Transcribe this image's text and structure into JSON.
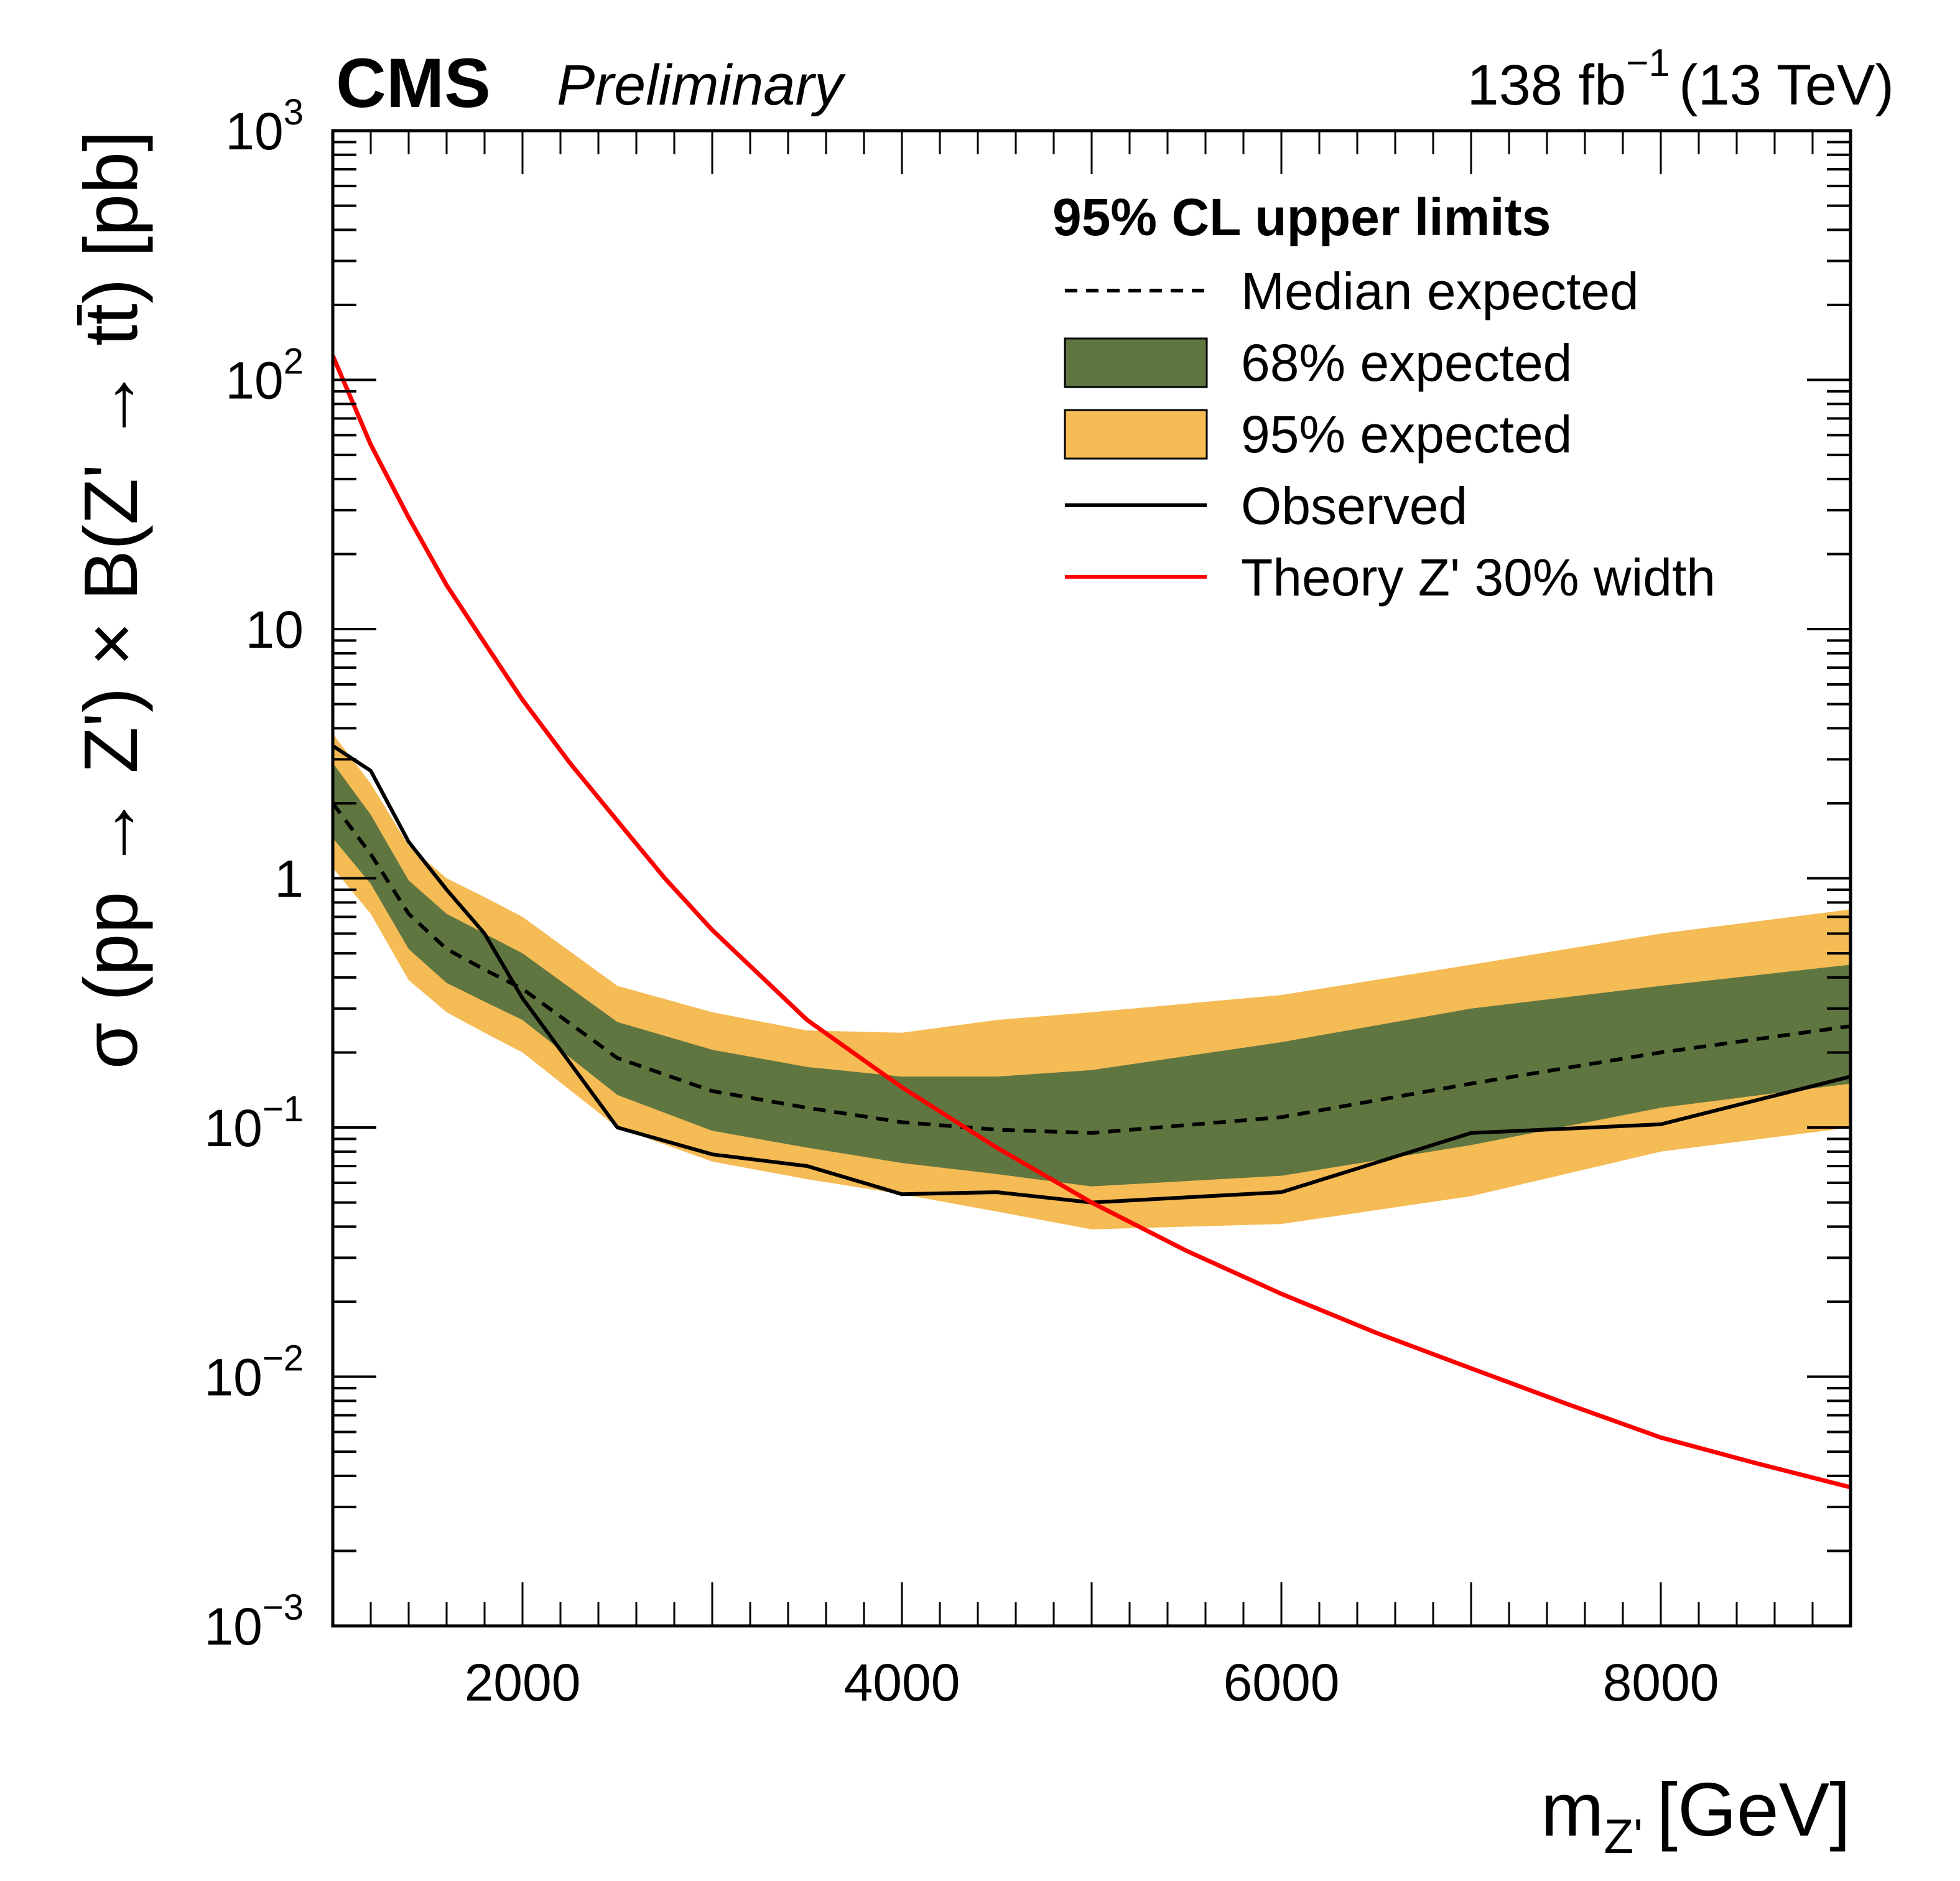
{
  "header": {
    "experiment": "CMS",
    "status": "Preliminary",
    "luminosity": "138 fb",
    "luminosity_exp": "−1",
    "energy": "(13 TeV)"
  },
  "chart_data": {
    "type": "line",
    "title": "95% CL upper limits",
    "xlabel": "m_Z' [GeV]",
    "xlabel_main": "m",
    "xlabel_sub": "Z'",
    "xlabel_unit": "[GeV]",
    "ylabel": "σ (pp → Z') × B(Z' → tt̄) [pb]",
    "xlim": [
      1000,
      9000
    ],
    "ylim": [
      0.001,
      1000
    ],
    "yscale": "log",
    "grid": false,
    "legend_position": "top-right",
    "x_ticks": [
      2000,
      4000,
      6000,
      8000
    ],
    "x_tick_labels": [
      "2000",
      "4000",
      "6000",
      "8000"
    ],
    "y_ticks": [
      {
        "value": 1000,
        "base": "10",
        "exp": "3"
      },
      {
        "value": 100,
        "base": "10",
        "exp": "2"
      },
      {
        "value": 10,
        "base": "10",
        "exp": ""
      },
      {
        "value": 1,
        "base": "1",
        "exp": ""
      },
      {
        "value": 0.1,
        "base": "10",
        "exp": "−1"
      },
      {
        "value": 0.01,
        "base": "10",
        "exp": "−2"
      },
      {
        "value": 0.001,
        "base": "10",
        "exp": "−3"
      }
    ],
    "x": [
      1000,
      1200,
      1400,
      1600,
      1800,
      2000,
      2500,
      3000,
      3500,
      4000,
      4500,
      5000,
      6000,
      7000,
      8000,
      9000
    ],
    "series": [
      {
        "name": "Median expected",
        "style": "dashed",
        "color": "#000000",
        "values": [
          2.0,
          1.25,
          0.72,
          0.52,
          0.43,
          0.36,
          0.19,
          0.14,
          0.12,
          0.105,
          0.098,
          0.095,
          0.11,
          0.15,
          0.2,
          0.255
        ]
      },
      {
        "name": "68% expected",
        "type": "band",
        "color": "#607641",
        "lower": [
          1.45,
          0.95,
          0.52,
          0.38,
          0.32,
          0.27,
          0.135,
          0.097,
          0.083,
          0.072,
          0.065,
          0.058,
          0.064,
          0.085,
          0.12,
          0.15
        ],
        "upper": [
          2.9,
          1.8,
          0.98,
          0.72,
          0.6,
          0.5,
          0.265,
          0.205,
          0.175,
          0.16,
          0.16,
          0.17,
          0.22,
          0.3,
          0.37,
          0.45
        ]
      },
      {
        "name": "95% expected",
        "type": "band",
        "color": "#F5BB54",
        "lower": [
          1.1,
          0.72,
          0.39,
          0.29,
          0.24,
          0.2,
          0.1,
          0.073,
          0.062,
          0.054,
          0.046,
          0.039,
          0.041,
          0.053,
          0.08,
          0.1
        ],
        "upper": [
          3.8,
          2.4,
          1.35,
          1.0,
          0.84,
          0.7,
          0.37,
          0.29,
          0.245,
          0.24,
          0.27,
          0.29,
          0.34,
          0.45,
          0.6,
          0.75
        ]
      },
      {
        "name": "Observed",
        "style": "solid",
        "color": "#000000",
        "values": [
          3.4,
          2.7,
          1.4,
          0.9,
          0.6,
          0.33,
          0.1,
          0.078,
          0.07,
          0.054,
          0.055,
          0.05,
          0.055,
          0.095,
          0.103,
          0.16
        ]
      },
      {
        "name": "Theory Z' 30% width",
        "style": "solid",
        "color": "#FF0000",
        "x": [
          1000,
          1200,
          1400,
          1600,
          1800,
          2000,
          2250,
          2500,
          2750,
          3000,
          3500,
          4000,
          4500,
          5000,
          5500,
          6000,
          6500,
          7000,
          7500,
          8000,
          8500,
          9000
        ],
        "values": [
          125,
          55,
          28,
          15,
          8.8,
          5.2,
          2.9,
          1.7,
          1.0,
          0.62,
          0.27,
          0.145,
          0.083,
          0.05,
          0.032,
          0.0215,
          0.015,
          0.0108,
          0.0078,
          0.0057,
          0.0045,
          0.0036
        ]
      }
    ],
    "legend": [
      {
        "label": "Median expected",
        "symbol": "dashed-line"
      },
      {
        "label": "68% expected",
        "symbol": "box",
        "color": "#607641"
      },
      {
        "label": "95% expected",
        "symbol": "box",
        "color": "#F5BB54"
      },
      {
        "label": "Observed",
        "symbol": "solid-line",
        "color": "#000000"
      },
      {
        "label": "Theory Z' 30% width",
        "symbol": "solid-line",
        "color": "#FF0000"
      }
    ]
  }
}
